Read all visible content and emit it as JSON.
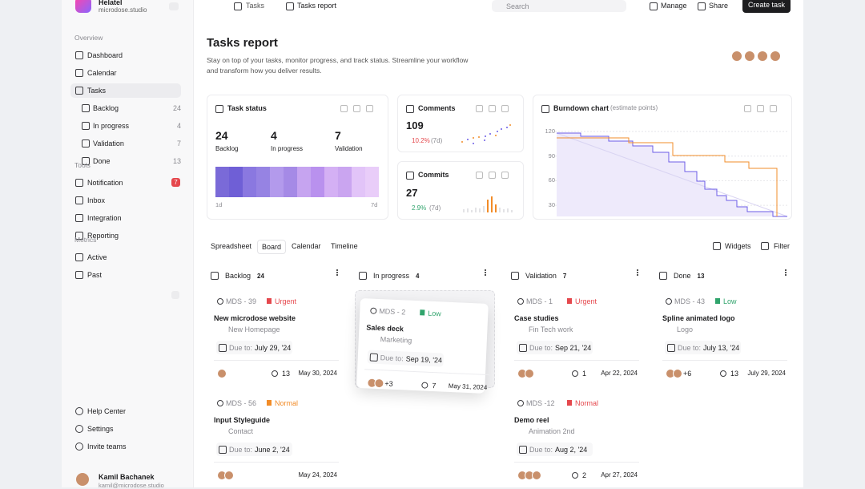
{
  "sidebar": {
    "brand": "Helatel",
    "workspace": "microdose.studio",
    "groups": [
      {
        "label": "Overview",
        "items": [
          {
            "label": "Dashboard"
          },
          {
            "label": "Calendar"
          },
          {
            "label": "Tasks",
            "children": [
              {
                "label": "Backlog",
                "count": 24
              },
              {
                "label": "In progress",
                "count": 4
              },
              {
                "label": "Validation",
                "count": 7
              },
              {
                "label": "Done",
                "count": 13
              }
            ]
          }
        ]
      },
      {
        "label": "Tools",
        "items": [
          {
            "label": "Notification",
            "badge": 7
          },
          {
            "label": "Inbox"
          },
          {
            "label": "Integration"
          },
          {
            "label": "Reporting"
          }
        ]
      },
      {
        "label": "Metrics",
        "items": [
          {
            "label": "Active"
          },
          {
            "label": "Past"
          }
        ]
      }
    ],
    "bottom": [
      "Help Center",
      "Settings",
      "Invite teams"
    ],
    "user": {
      "name": "Kamil Bachanek",
      "email": "kamil@microdose.studio"
    }
  },
  "topbar": {
    "breadcrumb": [
      "Tasks",
      "Tasks report"
    ],
    "search": "Search",
    "actions": [
      "Manage",
      "Share"
    ],
    "primary": "Create task"
  },
  "header": {
    "title": "Tasks report",
    "description": "Stay on top of your tasks, monitor progress, and track status. Streamline your workflow and transform how you deliver results."
  },
  "widgets": {
    "task_status": {
      "title": "Task status",
      "stats": [
        {
          "value": 24,
          "label": "Backlog"
        },
        {
          "value": 4,
          "label": "In progress"
        },
        {
          "value": 7,
          "label": "Validation"
        }
      ],
      "start": "1d",
      "end": "7d"
    },
    "comments": {
      "title": "Comments",
      "value": 109,
      "change": "10.2%",
      "period": "(7d)"
    },
    "commits": {
      "title": "Commits",
      "value": 27,
      "change": "2.9%",
      "period": "(7d)"
    },
    "burndown": {
      "title": "Burndown chart",
      "note": "(estimate points)",
      "yticks": [
        120,
        90,
        60,
        30
      ]
    }
  },
  "views": {
    "tabs": [
      "Spreadsheet",
      "Board",
      "Calendar",
      "Timeline"
    ],
    "tools": [
      "Widgets",
      "Filter"
    ]
  },
  "due_prefix": "Due to:",
  "columns": [
    {
      "name": "Backlog",
      "count": 24,
      "cards": [
        {
          "id": "MDS - 39",
          "priority": "Urgent",
          "priority_color": "#e5484d",
          "title": "New microdose website",
          "sub": "New Homepage",
          "due": "July 29, '24",
          "comments": 13,
          "date": "May 30, 2024",
          "avatars": 1
        },
        {
          "id": "MDS - 56",
          "priority": "Normal",
          "priority_color": "#f28c28",
          "title": "Input Styleguide",
          "sub": "Contact",
          "due": "June 2, '24",
          "date": "May 24, 2024",
          "avatars": 2
        }
      ]
    },
    {
      "name": "In progress",
      "count": 4,
      "cards": [
        {
          "id": "MDS - 2",
          "priority": "Low",
          "priority_color": "#30a46c",
          "title": "Sales deck",
          "sub": "Marketing",
          "due": "Sep 19, '24",
          "extra": "+3",
          "comments": 7,
          "date": "May 31, 2024",
          "avatars": 2
        }
      ]
    },
    {
      "name": "Validation",
      "count": 7,
      "cards": [
        {
          "id": "MDS - 1",
          "priority": "Urgent",
          "priority_color": "#e5484d",
          "title": "Case studies",
          "sub": "Fin Tech work",
          "due": "Sep 21, '24",
          "comments": 1,
          "date": "Apr 22, 2024",
          "avatars": 2
        },
        {
          "id": "MDS -12",
          "priority": "Normal",
          "priority_color": "#e5484d",
          "title": "Demo reel",
          "sub": "Animation 2nd",
          "due": "Aug 2, '24",
          "comments": 2,
          "date": "Apr 27, 2024",
          "avatars": 3
        }
      ]
    },
    {
      "name": "Done",
      "count": 13,
      "cards": [
        {
          "id": "MDS - 43",
          "priority": "Low",
          "priority_color": "#30a46c",
          "title": "Spline animated logo",
          "sub": "Logo",
          "due": "July 13, '24",
          "extra": "+6",
          "comments": 13,
          "date": "July 29, 2024",
          "avatars": 2
        }
      ]
    }
  ]
}
